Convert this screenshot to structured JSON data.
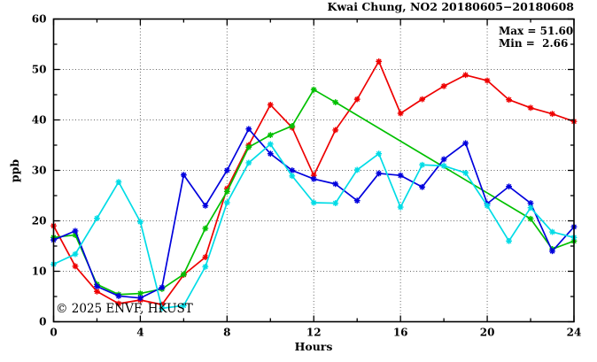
{
  "chart_data": {
    "type": "line",
    "title": "Kwai Chung, NO2 20180605−20180608",
    "xlabel": "Hours",
    "ylabel": "ppb",
    "xlim": [
      0,
      24
    ],
    "ylim": [
      0,
      60
    ],
    "x_ticks": [
      0,
      4,
      8,
      12,
      16,
      20,
      24
    ],
    "x_minor_step": 2,
    "y_ticks": [
      0,
      10,
      20,
      30,
      40,
      50,
      60
    ],
    "y_minor_step": 5,
    "grid": "dotted-major",
    "legend_position": "none",
    "annotations": {
      "max_label": "Max = 51.60",
      "min_label": "Min =  2.66"
    },
    "watermark": "© 2025 ENVF, HKUST",
    "x": [
      0,
      1,
      2,
      3,
      4,
      5,
      6,
      7,
      8,
      9,
      10,
      11,
      12,
      13,
      14,
      15,
      16,
      17,
      18,
      19,
      20,
      21,
      22,
      23,
      24
    ],
    "series": [
      {
        "name": "series-red",
        "color": "#ee0000",
        "values": [
          19.0,
          11.0,
          6.0,
          3.6,
          4.3,
          3.4,
          9.3,
          12.8,
          26.4,
          35.0,
          43.0,
          38.5,
          29.0,
          38.0,
          44.1,
          51.6,
          41.3,
          44.1,
          46.7,
          48.9,
          47.8,
          44.0,
          42.4,
          41.2,
          39.7
        ]
      },
      {
        "name": "series-green",
        "color": "#00c000",
        "values": [
          16.7,
          17.2,
          7.4,
          5.4,
          5.6,
          6.5,
          9.4,
          18.5,
          25.8,
          34.6,
          37.0,
          38.8,
          46.0,
          43.5,
          null,
          null,
          null,
          null,
          null,
          null,
          null,
          null,
          20.4,
          14.4,
          16.0
        ]
      },
      {
        "name": "series-blue",
        "color": "#0000dd",
        "values": [
          16.2,
          18.0,
          7.0,
          5.1,
          4.7,
          6.8,
          29.1,
          23.0,
          30.0,
          38.2,
          33.3,
          30.0,
          28.3,
          27.3,
          24.0,
          29.4,
          29.0,
          26.7,
          32.2,
          35.4,
          23.4,
          26.8,
          23.5,
          14.0,
          18.8
        ]
      },
      {
        "name": "series-cyan",
        "color": "#00dce6",
        "values": [
          11.4,
          13.4,
          20.5,
          27.7,
          19.8,
          2.66,
          3.2,
          10.9,
          23.6,
          31.5,
          35.2,
          28.9,
          23.6,
          23.5,
          30.1,
          33.3,
          22.7,
          31.1,
          30.9,
          29.5,
          23.0,
          16.0,
          22.6,
          17.8,
          16.7
        ]
      }
    ],
    "stats": {
      "max": 51.6,
      "min": 2.66
    }
  }
}
